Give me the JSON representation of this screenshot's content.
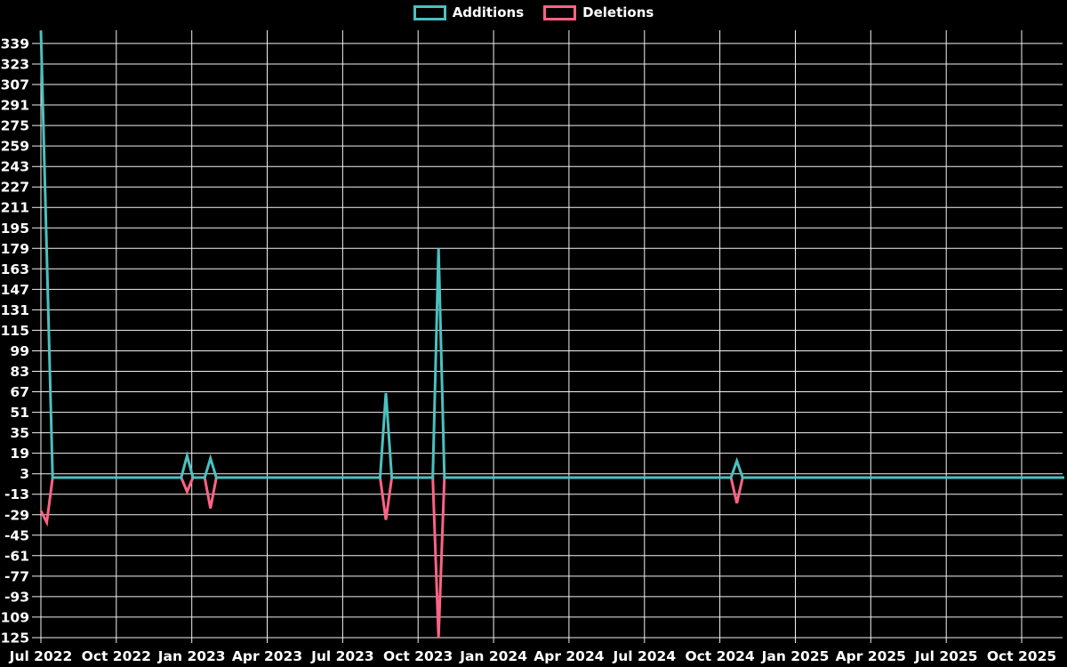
{
  "chart_data": {
    "type": "line",
    "title": "",
    "legend_position": "top",
    "legend": [
      "Additions",
      "Deletions"
    ],
    "background_color": "#000000",
    "grid_color": "#f2f2f2",
    "text_color": "#ffffff",
    "grid": true,
    "x_tick_labels": [
      "Jul 2022",
      "Oct 2022",
      "Jan 2023",
      "Apr 2023",
      "Jul 2023",
      "Oct 2023",
      "Jan 2024",
      "Apr 2024",
      "Jul 2024",
      "Oct 2024",
      "Jan 2025",
      "Apr 2025",
      "Jul 2025",
      "Oct 2025"
    ],
    "y_ticks": [
      -125,
      -109,
      -93,
      -77,
      -61,
      -45,
      -29,
      -13,
      3,
      19,
      35,
      51,
      67,
      83,
      99,
      115,
      131,
      147,
      163,
      179,
      195,
      211,
      227,
      243,
      259,
      275,
      291,
      307,
      323,
      339
    ],
    "ylim": [
      -125,
      349
    ],
    "weeks_total": 176,
    "default_value": 0,
    "series": [
      {
        "name": "Additions",
        "color": "#4bc0c0",
        "nonzero_points": [
          {
            "week": 0,
            "value": 349
          },
          {
            "week": 1,
            "value": 175
          },
          {
            "week": 25,
            "value": 17
          },
          {
            "week": 29,
            "value": 15
          },
          {
            "week": 59,
            "value": 66
          },
          {
            "week": 68,
            "value": 179
          },
          {
            "week": 119,
            "value": 13
          }
        ]
      },
      {
        "name": "Deletions",
        "color": "#ff6384",
        "nonzero_points": [
          {
            "week": 0,
            "value": -26
          },
          {
            "week": 1,
            "value": -35
          },
          {
            "week": 25,
            "value": -11
          },
          {
            "week": 29,
            "value": -24
          },
          {
            "week": 59,
            "value": -33
          },
          {
            "week": 68,
            "value": -125
          },
          {
            "week": 119,
            "value": -20
          }
        ]
      }
    ]
  }
}
